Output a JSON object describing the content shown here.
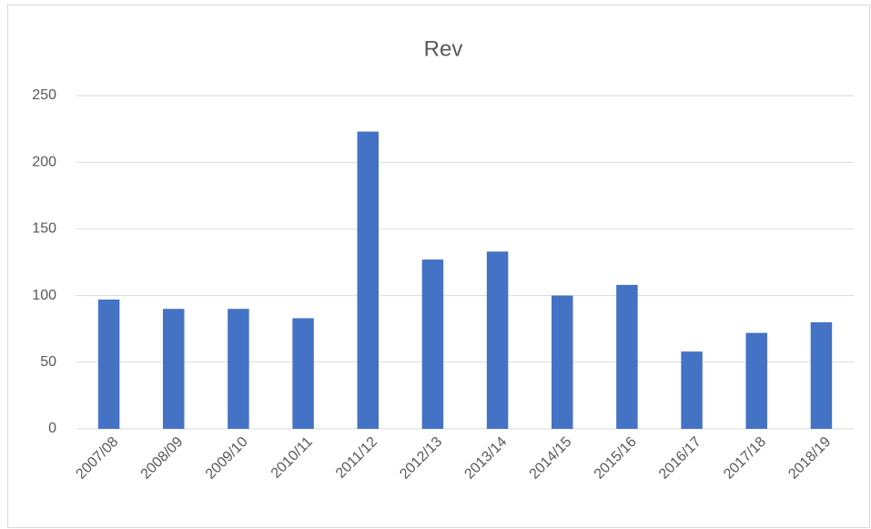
{
  "chart_data": {
    "type": "bar",
    "title": "Rev",
    "categories": [
      "2007/08",
      "2008/09",
      "2009/10",
      "2010/11",
      "2011/12",
      "2012/13",
      "2013/14",
      "2014/15",
      "2015/16",
      "2016/17",
      "2017/18",
      "2018/19"
    ],
    "values": [
      97,
      90,
      90,
      83,
      223,
      127,
      133,
      100,
      108,
      58,
      72,
      80
    ],
    "color": "#4472c4",
    "ylim": [
      0,
      250
    ],
    "yticks": [
      0,
      50,
      100,
      150,
      200,
      250
    ],
    "grid": true
  }
}
